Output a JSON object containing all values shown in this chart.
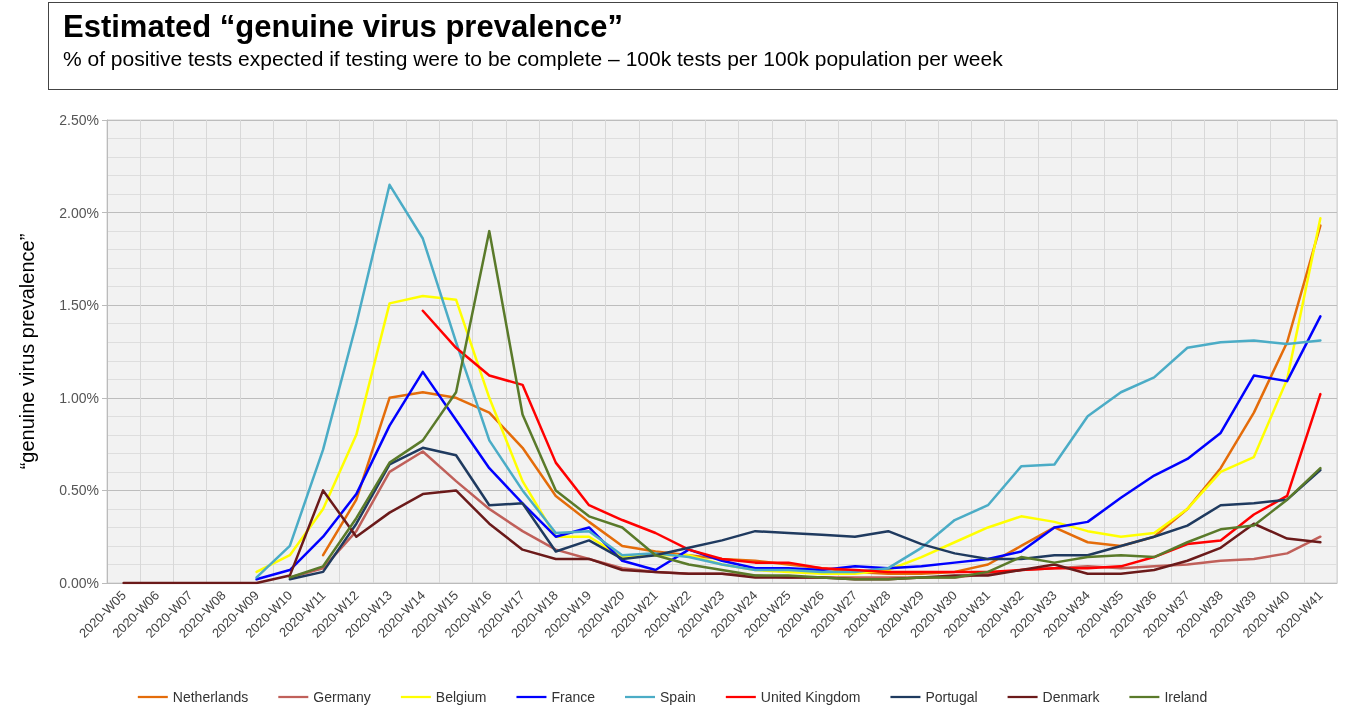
{
  "chart_data": {
    "type": "line",
    "title": "Estimated “genuine virus prevalence”",
    "subtitle": "% of positive tests expected if testing were to be complete – 100k tests per 100k population per week",
    "ylabel": "“genuine virus prevalence”",
    "categories": [
      "2020-W05",
      "2020-W06",
      "2020-W07",
      "2020-W08",
      "2020-W09",
      "2020-W10",
      "2020-W11",
      "2020-W12",
      "2020-W13",
      "2020-W14",
      "2020-W15",
      "2020-W16",
      "2020-W17",
      "2020-W18",
      "2020-W19",
      "2020-W20",
      "2020-W21",
      "2020-W22",
      "2020-W23",
      "2020-W24",
      "2020-W25",
      "2020-W26",
      "2020-W27",
      "2020-W28",
      "2020-W29",
      "2020-W30",
      "2020-W31",
      "2020-W32",
      "2020-W33",
      "2020-W34",
      "2020-W35",
      "2020-W36",
      "2020-W37",
      "2020-W38",
      "2020-W39",
      "2020-W40",
      "2020-W41"
    ],
    "series": [
      {
        "name": "Netherlands",
        "color": "#e46c0a",
        "values": [
          null,
          null,
          null,
          null,
          null,
          null,
          0.15,
          0.45,
          1.0,
          1.03,
          1.0,
          0.92,
          0.73,
          0.47,
          0.33,
          0.2,
          0.17,
          0.15,
          0.13,
          0.12,
          0.1,
          0.08,
          0.06,
          0.05,
          0.05,
          0.06,
          0.1,
          0.2,
          0.3,
          0.22,
          0.2,
          0.25,
          0.4,
          0.62,
          0.92,
          1.3,
          1.93
        ]
      },
      {
        "name": "Germany",
        "color": "#c0605a",
        "values": [
          null,
          null,
          null,
          null,
          null,
          0.03,
          0.08,
          0.28,
          0.6,
          0.71,
          0.55,
          0.4,
          0.28,
          0.18,
          0.13,
          0.08,
          0.06,
          0.05,
          0.05,
          0.04,
          0.03,
          0.03,
          0.03,
          0.03,
          0.03,
          0.03,
          0.05,
          0.07,
          0.08,
          0.09,
          0.08,
          0.09,
          0.1,
          0.12,
          0.13,
          0.16,
          0.25
        ]
      },
      {
        "name": "Belgium",
        "color": "#ffff00",
        "values": [
          null,
          null,
          null,
          null,
          0.06,
          0.15,
          0.4,
          0.8,
          1.51,
          1.55,
          1.53,
          1.0,
          0.55,
          0.25,
          0.25,
          0.14,
          0.15,
          0.15,
          0.1,
          0.07,
          0.06,
          0.05,
          0.05,
          0.07,
          0.14,
          0.22,
          0.3,
          0.36,
          0.33,
          0.28,
          0.25,
          0.27,
          0.4,
          0.6,
          0.68,
          1.1,
          1.97
        ]
      },
      {
        "name": "France",
        "color": "#0000ff",
        "values": [
          null,
          null,
          null,
          null,
          0.02,
          0.07,
          0.25,
          0.48,
          0.85,
          1.14,
          0.88,
          0.62,
          0.43,
          0.25,
          0.3,
          0.12,
          0.07,
          0.18,
          0.12,
          0.08,
          0.08,
          0.07,
          0.09,
          0.08,
          0.09,
          0.11,
          0.13,
          0.17,
          0.3,
          0.33,
          0.46,
          0.58,
          0.67,
          0.81,
          1.12,
          1.09,
          1.44
        ]
      },
      {
        "name": "Spain",
        "color": "#4bacc6",
        "values": [
          null,
          null,
          null,
          null,
          0.03,
          0.2,
          0.72,
          1.4,
          2.15,
          1.86,
          1.3,
          0.77,
          0.5,
          0.27,
          0.28,
          0.15,
          0.16,
          0.14,
          0.1,
          0.07,
          0.07,
          0.06,
          0.06,
          0.08,
          0.19,
          0.34,
          0.42,
          0.63,
          0.64,
          0.9,
          1.03,
          1.11,
          1.27,
          1.3,
          1.31,
          1.29,
          1.31
        ]
      },
      {
        "name": "United Kingdom",
        "color": "#ff0000",
        "values": [
          null,
          null,
          null,
          null,
          null,
          null,
          null,
          null,
          null,
          1.47,
          1.27,
          1.12,
          1.07,
          0.65,
          0.42,
          0.34,
          0.27,
          0.18,
          0.13,
          0.11,
          0.11,
          0.08,
          0.07,
          0.06,
          0.06,
          0.06,
          0.06,
          0.07,
          0.08,
          0.08,
          0.09,
          0.14,
          0.21,
          0.23,
          0.37,
          0.47,
          1.02
        ]
      },
      {
        "name": "Portugal",
        "color": "#1f3a5f",
        "values": [
          null,
          null,
          null,
          null,
          null,
          0.02,
          0.06,
          0.32,
          0.64,
          0.73,
          0.69,
          0.42,
          0.43,
          0.17,
          0.23,
          0.13,
          0.15,
          0.19,
          0.23,
          0.28,
          0.27,
          0.26,
          0.25,
          0.28,
          0.21,
          0.16,
          0.13,
          0.13,
          0.15,
          0.15,
          0.2,
          0.25,
          0.31,
          0.42,
          0.43,
          0.45,
          0.61
        ]
      },
      {
        "name": "Denmark",
        "color": "#6b1a1a",
        "values": [
          0,
          0,
          0,
          0,
          0,
          0.04,
          0.5,
          0.25,
          0.38,
          0.48,
          0.5,
          0.32,
          0.18,
          0.13,
          0.13,
          0.07,
          0.06,
          0.05,
          0.05,
          0.03,
          0.03,
          0.03,
          0.02,
          0.02,
          0.03,
          0.04,
          0.04,
          0.07,
          0.1,
          0.05,
          0.05,
          0.07,
          0.12,
          0.19,
          0.32,
          0.24,
          0.22
        ]
      },
      {
        "name": "Ireland",
        "color": "#5a7a2a",
        "values": [
          null,
          null,
          null,
          null,
          null,
          0.03,
          0.09,
          0.35,
          0.65,
          0.77,
          1.03,
          1.9,
          0.91,
          0.5,
          0.36,
          0.3,
          0.15,
          0.1,
          0.07,
          0.04,
          0.04,
          0.03,
          0.02,
          0.02,
          0.03,
          0.03,
          0.06,
          0.14,
          0.11,
          0.14,
          0.15,
          0.14,
          0.22,
          0.29,
          0.31,
          0.45,
          0.62
        ]
      }
    ],
    "ylim": [
      0,
      2.5
    ],
    "yticks": [
      {
        "value": 0,
        "label": "0.00%"
      },
      {
        "value": 0.5,
        "label": "0.50%"
      },
      {
        "value": 1,
        "label": "1.00%"
      },
      {
        "value": 1.5,
        "label": "1.50%"
      },
      {
        "value": 2,
        "label": "2.00%"
      },
      {
        "value": 2.5,
        "label": "2.50%"
      }
    ],
    "grid": true,
    "legend": "bottom",
    "marker": "none",
    "line_style": "solid"
  }
}
